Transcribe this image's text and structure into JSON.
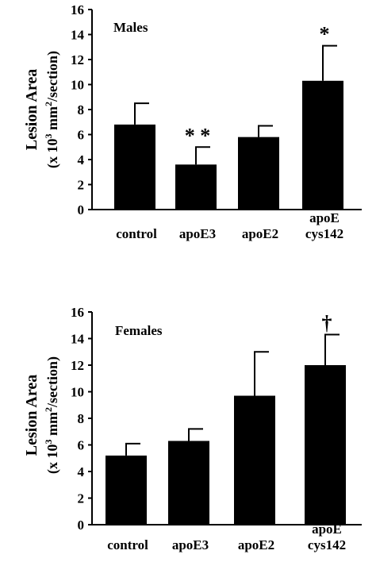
{
  "chart_data": [
    {
      "type": "bar",
      "title": "Males",
      "ylabel_line1": "Lesion Area",
      "ylabel_line2": {
        "pre": "(x 10",
        "sup1": "3",
        "mid": " mm",
        "sup2": "2",
        "post": "/section)"
      },
      "categories": [
        {
          "lines": [
            "control"
          ]
        },
        {
          "lines": [
            "apoE3"
          ]
        },
        {
          "lines": [
            "apoE2"
          ]
        },
        {
          "lines": [
            "apoE",
            "cys142"
          ]
        }
      ],
      "values": [
        6.8,
        3.6,
        5.8,
        10.3
      ],
      "errors": [
        1.7,
        1.4,
        0.9,
        2.8
      ],
      "annotations": [
        "",
        "* *",
        "",
        "*"
      ],
      "ylim": [
        0,
        16
      ],
      "yticks": [
        0,
        2,
        4,
        6,
        8,
        10,
        12,
        14,
        16
      ],
      "bar_color": "#000000"
    },
    {
      "type": "bar",
      "title": "Females",
      "ylabel_line1": "Lesion Area",
      "ylabel_line2": {
        "pre": "(x 10",
        "sup1": "3",
        "mid": " mm",
        "sup2": "2",
        "post": "/section)"
      },
      "categories": [
        {
          "lines": [
            "control"
          ]
        },
        {
          "lines": [
            "apoE3"
          ]
        },
        {
          "lines": [
            "apoE2"
          ]
        },
        {
          "lines": [
            "apoE",
            "cys142"
          ]
        }
      ],
      "values": [
        5.2,
        6.3,
        9.7,
        12.0
      ],
      "errors": [
        0.9,
        0.9,
        3.3,
        2.3
      ],
      "annotations": [
        "",
        "",
        "",
        "†"
      ],
      "ylim": [
        0,
        16
      ],
      "yticks": [
        0,
        2,
        4,
        6,
        8,
        10,
        12,
        14,
        16
      ],
      "bar_color": "#000000"
    }
  ]
}
